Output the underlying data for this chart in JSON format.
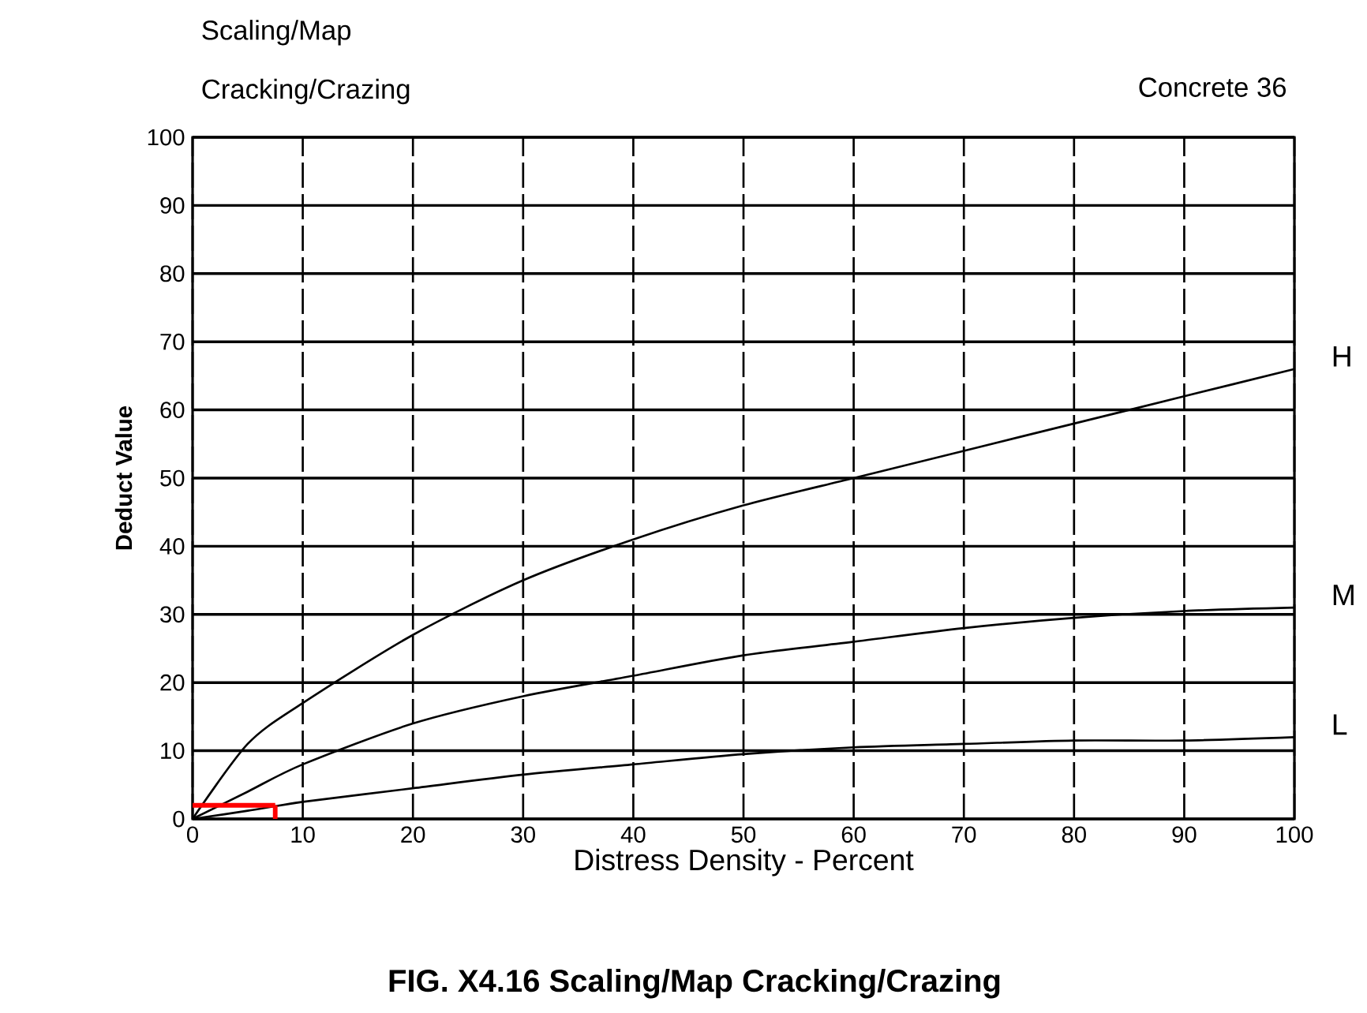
{
  "chart_data": {
    "type": "line",
    "title": "FIG. X4.16 Scaling/Map Cracking/Crazing",
    "xlabel": "Distress Density - Percent",
    "ylabel": "Deduct Value",
    "annotations": [
      "Scaling/Map",
      "Cracking/Crazing",
      "Concrete 36"
    ],
    "x": [
      0,
      5,
      10,
      20,
      30,
      40,
      50,
      60,
      70,
      80,
      90,
      100
    ],
    "series": [
      {
        "name": "H",
        "color": "#000000",
        "values": [
          0,
          11,
          17,
          27,
          35,
          41,
          46,
          50,
          54,
          58,
          62,
          66
        ]
      },
      {
        "name": "M",
        "color": "#000000",
        "values": [
          0,
          4,
          8,
          14,
          18,
          21,
          24,
          26,
          28,
          29.5,
          30.5,
          31
        ]
      },
      {
        "name": "L",
        "color": "#000000",
        "values": [
          0,
          1.2,
          2.5,
          4.5,
          6.5,
          8,
          9.5,
          10.5,
          11,
          11.5,
          11.5,
          12
        ]
      },
      {
        "color": "#ff0000",
        "x": [
          0,
          7.5
        ],
        "values": [
          2,
          2
        ],
        "errors": [
          null,
          [
            0,
            2
          ]
        ]
      }
    ],
    "xlim": [
      0,
      100
    ],
    "ylim": [
      0,
      100
    ],
    "xticks": [
      0,
      10,
      20,
      30,
      40,
      50,
      60,
      70,
      80,
      90,
      100
    ],
    "yticks": [
      0,
      10,
      20,
      30,
      40,
      50,
      60,
      70,
      80,
      90,
      100
    ],
    "grid": true,
    "marker": "none",
    "line_style": "solid"
  }
}
